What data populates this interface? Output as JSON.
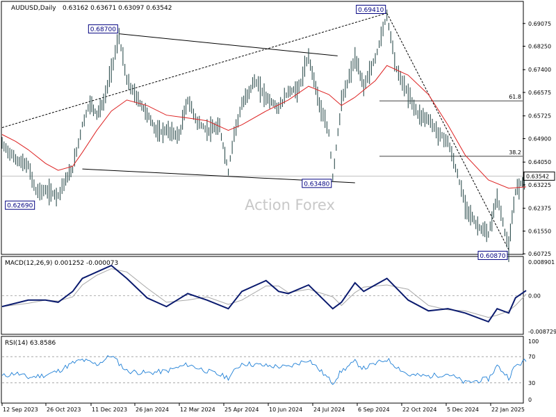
{
  "header": {
    "symbol": "AUDUSD,Daily",
    "ohlc": "0.63162 0.63671 0.63097 0.63542"
  },
  "watermark": "Action Forex",
  "colors": {
    "price": "#2f4f4f",
    "ma": "#dd2222",
    "macd": "#0a1a6e",
    "signal": "#a8a8a8",
    "rsi": "#1e7fd6",
    "label_border": "#000080",
    "label_bg": "#ffffff",
    "label_text": "#000080"
  },
  "chart_data": {
    "type": "line",
    "price_axis": {
      "ylim": [
        0.6073,
        0.6985
      ],
      "tick_labels": [
        "0.69075",
        "0.68250",
        "0.67400",
        "0.66575",
        "0.65725",
        "0.64900",
        "0.64050",
        "0.63225",
        "0.62375",
        "0.61550",
        "0.60725"
      ],
      "tick_values": [
        0.69075,
        0.6825,
        0.674,
        0.66575,
        0.65725,
        0.649,
        0.6405,
        0.63225,
        0.62375,
        0.6155,
        0.60725
      ],
      "current_label": "0.63542",
      "current_value": 0.63542
    },
    "x_labels": [
      "12 Sep 2023",
      "26 Oct 2023",
      "11 Dec 2023",
      "26 Jan 2024",
      "12 Mar 2024",
      "25 Apr 2024",
      "10 Jun 2024",
      "24 Jul 2024",
      "6 Sep 2024",
      "22 Oct 2024",
      "5 Dec 2024",
      "22 Jan 2025"
    ],
    "x_range": [
      "2023-08-29",
      "2025-02-03"
    ],
    "price_series": [
      [
        "2023-08-29",
        0.647
      ],
      [
        "2023-09-12",
        0.6415
      ],
      [
        "2023-09-25",
        0.639
      ],
      [
        "2023-10-03",
        0.63
      ],
      [
        "2023-10-13",
        0.63
      ],
      [
        "2023-10-26",
        0.6285
      ],
      [
        "2023-11-01",
        0.633
      ],
      [
        "2023-11-10",
        0.638
      ],
      [
        "2023-11-20",
        0.654
      ],
      [
        "2023-11-28",
        0.662
      ],
      [
        "2023-12-05",
        0.658
      ],
      [
        "2023-12-12",
        0.662
      ],
      [
        "2023-12-20",
        0.674
      ],
      [
        "2023-12-28",
        0.686
      ],
      [
        "2024-01-05",
        0.67
      ],
      [
        "2024-01-15",
        0.664
      ],
      [
        "2024-01-26",
        0.658
      ],
      [
        "2024-02-06",
        0.651
      ],
      [
        "2024-02-15",
        0.652
      ],
      [
        "2024-02-28",
        0.65
      ],
      [
        "2024-03-08",
        0.663
      ],
      [
        "2024-03-18",
        0.655
      ],
      [
        "2024-03-28",
        0.652
      ],
      [
        "2024-04-10",
        0.653
      ],
      [
        "2024-04-19",
        0.637
      ],
      [
        "2024-04-25",
        0.651
      ],
      [
        "2024-05-03",
        0.661
      ],
      [
        "2024-05-16",
        0.67
      ],
      [
        "2024-05-28",
        0.664
      ],
      [
        "2024-06-10",
        0.66
      ],
      [
        "2024-06-20",
        0.666
      ],
      [
        "2024-07-01",
        0.667
      ],
      [
        "2024-07-11",
        0.679
      ],
      [
        "2024-07-24",
        0.659
      ],
      [
        "2024-08-01",
        0.651
      ],
      [
        "2024-08-05",
        0.635
      ],
      [
        "2024-08-14",
        0.662
      ],
      [
        "2024-08-28",
        0.678
      ],
      [
        "2024-09-06",
        0.668
      ],
      [
        "2024-09-18",
        0.678
      ],
      [
        "2024-09-30",
        0.694
      ],
      [
        "2024-10-10",
        0.674
      ],
      [
        "2024-10-22",
        0.665
      ],
      [
        "2024-11-01",
        0.658
      ],
      [
        "2024-11-12",
        0.656
      ],
      [
        "2024-11-22",
        0.651
      ],
      [
        "2024-12-02",
        0.648
      ],
      [
        "2024-12-12",
        0.636
      ],
      [
        "2024-12-20",
        0.625
      ],
      [
        "2024-12-31",
        0.618
      ],
      [
        "2025-01-13",
        0.614
      ],
      [
        "2025-01-22",
        0.628
      ],
      [
        "2025-02-03",
        0.609
      ],
      [
        "2025-02-10",
        0.63
      ],
      [
        "2025-02-21",
        0.6354
      ]
    ],
    "ma_series": [
      [
        "2023-08-29",
        0.6505
      ],
      [
        "2023-09-12",
        0.648
      ],
      [
        "2023-09-25",
        0.645
      ],
      [
        "2023-10-13",
        0.64
      ],
      [
        "2023-10-26",
        0.6375
      ],
      [
        "2023-11-10",
        0.639
      ],
      [
        "2023-11-20",
        0.644
      ],
      [
        "2023-12-05",
        0.652
      ],
      [
        "2023-12-20",
        0.659
      ],
      [
        "2024-01-05",
        0.663
      ],
      [
        "2024-01-26",
        0.661
      ],
      [
        "2024-02-15",
        0.6575
      ],
      [
        "2024-03-08",
        0.6565
      ],
      [
        "2024-03-28",
        0.6555
      ],
      [
        "2024-04-19",
        0.652
      ],
      [
        "2024-05-03",
        0.654
      ],
      [
        "2024-05-28",
        0.659
      ],
      [
        "2024-06-20",
        0.663
      ],
      [
        "2024-07-11",
        0.668
      ],
      [
        "2024-08-01",
        0.665
      ],
      [
        "2024-08-14",
        0.661
      ],
      [
        "2024-08-28",
        0.664
      ],
      [
        "2024-09-18",
        0.67
      ],
      [
        "2024-09-30",
        0.6755
      ],
      [
        "2024-10-22",
        0.672
      ],
      [
        "2024-11-12",
        0.665
      ],
      [
        "2024-12-02",
        0.654
      ],
      [
        "2024-12-20",
        0.643
      ],
      [
        "2025-01-13",
        0.634
      ],
      [
        "2025-02-03",
        0.631
      ],
      [
        "2025-02-21",
        0.6315
      ]
    ],
    "annotations": [
      {
        "label": "0.68700",
        "date": "2023-12-28",
        "value": 0.687,
        "anchor": "left"
      },
      {
        "label": "0.69410",
        "date": "2024-09-30",
        "value": 0.6941,
        "anchor": "left"
      },
      {
        "label": "0.62690",
        "date": "2023-10-03",
        "value": 0.6269,
        "anchor": "left",
        "below": true
      },
      {
        "label": "0.63480",
        "date": "2024-08-05",
        "value": 0.6348,
        "anchor": "left",
        "below": true
      },
      {
        "label": "0.60870",
        "date": "2025-02-03",
        "value": 0.6087,
        "anchor": "left",
        "below": true
      }
    ],
    "fib_levels": [
      {
        "label": "61.8",
        "value": 0.6627
      },
      {
        "label": "38.2",
        "value": 0.6426
      }
    ],
    "trendlines": [
      {
        "from": [
          "2023-12-28",
          0.687
        ],
        "to": [
          "2024-08-10",
          0.679
        ],
        "style": "solid"
      },
      {
        "from": [
          "2023-11-20",
          0.638
        ],
        "to": [
          "2024-08-28",
          0.633
        ],
        "style": "solid"
      },
      {
        "from": [
          "2023-08-29",
          0.653
        ],
        "to": [
          "2024-09-30",
          0.6945
        ],
        "style": "dashed"
      },
      {
        "from": [
          "2024-09-30",
          0.6945
        ],
        "to": [
          "2025-02-03",
          0.6087
        ],
        "style": "dashed"
      }
    ],
    "macd": {
      "label": "MACD(12,26,9) 0.001252 -0.000073",
      "ylim": [
        -0.00875,
        0.00892
      ],
      "tick_labels": [
        "0.008901",
        "0.00",
        "-0.008729"
      ],
      "tick_values": [
        0.008901,
        0.0,
        -0.008729
      ],
      "series": [
        [
          "2023-08-29",
          -0.0025
        ],
        [
          "2023-09-25",
          -0.001
        ],
        [
          "2023-10-13",
          -0.001
        ],
        [
          "2023-10-26",
          -0.0015
        ],
        [
          "2023-11-10",
          0.001
        ],
        [
          "2023-11-20",
          0.004
        ],
        [
          "2023-12-05",
          0.0055
        ],
        [
          "2023-12-20",
          0.007
        ],
        [
          "2024-01-05",
          0.004
        ],
        [
          "2024-01-26",
          -0.0005
        ],
        [
          "2024-02-15",
          -0.0025
        ],
        [
          "2024-03-08",
          0.0005
        ],
        [
          "2024-03-28",
          -0.001
        ],
        [
          "2024-04-19",
          -0.003
        ],
        [
          "2024-05-03",
          0.001
        ],
        [
          "2024-05-28",
          0.0035
        ],
        [
          "2024-06-10",
          0.001
        ],
        [
          "2024-06-20",
          0.0005
        ],
        [
          "2024-07-11",
          0.0025
        ],
        [
          "2024-08-05",
          -0.003
        ],
        [
          "2024-08-14",
          -0.0015
        ],
        [
          "2024-08-28",
          0.003
        ],
        [
          "2024-09-06",
          0.001
        ],
        [
          "2024-09-30",
          0.004
        ],
        [
          "2024-10-22",
          -0.001
        ],
        [
          "2024-11-12",
          -0.0035
        ],
        [
          "2024-12-02",
          -0.003
        ],
        [
          "2024-12-20",
          -0.004
        ],
        [
          "2025-01-13",
          -0.006
        ],
        [
          "2025-01-22",
          -0.003
        ],
        [
          "2025-02-03",
          -0.004
        ],
        [
          "2025-02-10",
          -0.0005
        ],
        [
          "2025-02-21",
          0.0012
        ]
      ]
    },
    "rsi": {
      "label": "RSI(14) 63.8586",
      "ylim": [
        0,
        100
      ],
      "tick_labels": [
        "100",
        "70",
        "30",
        "0"
      ],
      "tick_values": [
        100,
        70,
        30,
        0
      ],
      "levels": [
        70,
        30
      ],
      "series": [
        [
          "2023-08-29",
          40
        ],
        [
          "2023-09-12",
          45
        ],
        [
          "2023-09-25",
          38
        ],
        [
          "2023-10-13",
          42
        ],
        [
          "2023-10-26",
          48
        ],
        [
          "2023-11-10",
          60
        ],
        [
          "2023-11-20",
          65
        ],
        [
          "2023-12-05",
          58
        ],
        [
          "2023-12-20",
          72
        ],
        [
          "2024-01-05",
          48
        ],
        [
          "2024-01-26",
          45
        ],
        [
          "2024-02-15",
          48
        ],
        [
          "2024-03-08",
          58
        ],
        [
          "2024-03-28",
          48
        ],
        [
          "2024-04-19",
          38
        ],
        [
          "2024-05-03",
          60
        ],
        [
          "2024-05-28",
          56
        ],
        [
          "2024-06-20",
          54
        ],
        [
          "2024-07-11",
          66
        ],
        [
          "2024-08-05",
          30
        ],
        [
          "2024-08-14",
          48
        ],
        [
          "2024-08-28",
          62
        ],
        [
          "2024-09-06",
          52
        ],
        [
          "2024-09-30",
          66
        ],
        [
          "2024-10-22",
          42
        ],
        [
          "2024-11-12",
          40
        ],
        [
          "2024-12-02",
          44
        ],
        [
          "2024-12-20",
          30
        ],
        [
          "2025-01-13",
          36
        ],
        [
          "2025-01-22",
          56
        ],
        [
          "2025-02-03",
          38
        ],
        [
          "2025-02-10",
          56
        ],
        [
          "2025-02-21",
          64
        ]
      ]
    }
  }
}
